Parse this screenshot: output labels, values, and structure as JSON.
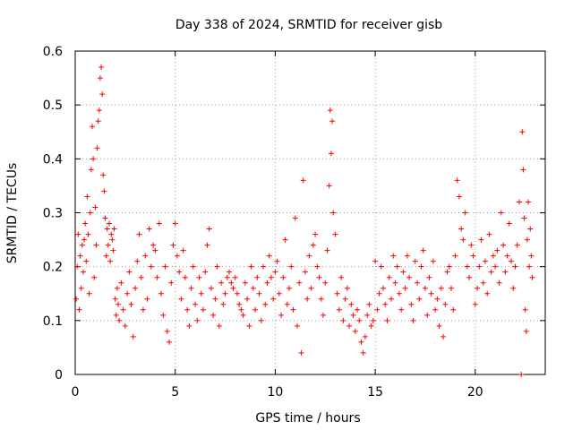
{
  "chart_data": {
    "type": "scatter",
    "title": "Day 338 of 2024, SRMTID for receiver gisb",
    "xlabel": "GPS time / hours",
    "ylabel": "SRMTID / TECUs",
    "xlim": [
      0,
      23.5
    ],
    "ylim": [
      0,
      0.6
    ],
    "x_ticks": [
      0,
      5,
      10,
      15,
      20
    ],
    "y_ticks": [
      0,
      0.1,
      0.2,
      0.3,
      0.4,
      0.5,
      0.6
    ],
    "x_tick_labels": [
      "0",
      "5",
      "10",
      "15",
      "20"
    ],
    "y_tick_labels": [
      "0",
      "0.1",
      "0.2",
      "0.3",
      "0.4",
      "0.5",
      "0.6"
    ],
    "grid": true,
    "marker": "plus",
    "color": "#ff0000",
    "series": [
      {
        "name": "SRMTID",
        "points": [
          [
            0.05,
            0.14
          ],
          [
            0.1,
            0.2
          ],
          [
            0.15,
            0.26
          ],
          [
            0.2,
            0.12
          ],
          [
            0.25,
            0.22
          ],
          [
            0.3,
            0.16
          ],
          [
            0.35,
            0.24
          ],
          [
            0.4,
            0.19
          ],
          [
            0.45,
            0.25
          ],
          [
            0.5,
            0.28
          ],
          [
            0.55,
            0.21
          ],
          [
            0.6,
            0.33
          ],
          [
            0.65,
            0.26
          ],
          [
            0.7,
            0.15
          ],
          [
            0.75,
            0.3
          ],
          [
            0.8,
            0.38
          ],
          [
            0.85,
            0.46
          ],
          [
            0.9,
            0.4
          ],
          [
            0.95,
            0.18
          ],
          [
            1.0,
            0.31
          ],
          [
            1.05,
            0.24
          ],
          [
            1.1,
            0.42
          ],
          [
            1.15,
            0.47
          ],
          [
            1.2,
            0.49
          ],
          [
            1.25,
            0.55
          ],
          [
            1.3,
            0.57
          ],
          [
            1.35,
            0.52
          ],
          [
            1.4,
            0.37
          ],
          [
            1.45,
            0.34
          ],
          [
            1.5,
            0.29
          ],
          [
            1.55,
            0.22
          ],
          [
            1.6,
            0.27
          ],
          [
            1.65,
            0.24
          ],
          [
            1.7,
            0.28
          ],
          [
            1.75,
            0.21
          ],
          [
            1.8,
            0.26
          ],
          [
            1.85,
            0.25
          ],
          [
            1.9,
            0.23
          ],
          [
            1.95,
            0.27
          ],
          [
            2.0,
            0.14
          ],
          [
            2.05,
            0.11
          ],
          [
            2.1,
            0.16
          ],
          [
            2.15,
            0.13
          ],
          [
            2.2,
            0.1
          ],
          [
            2.3,
            0.17
          ],
          [
            2.4,
            0.12
          ],
          [
            2.5,
            0.09
          ],
          [
            2.6,
            0.15
          ],
          [
            2.7,
            0.19
          ],
          [
            2.8,
            0.13
          ],
          [
            2.9,
            0.07
          ],
          [
            3.0,
            0.16
          ],
          [
            3.1,
            0.21
          ],
          [
            3.2,
            0.26
          ],
          [
            3.3,
            0.18
          ],
          [
            3.4,
            0.12
          ],
          [
            3.5,
            0.22
          ],
          [
            3.6,
            0.14
          ],
          [
            3.7,
            0.27
          ],
          [
            3.8,
            0.2
          ],
          [
            3.9,
            0.24
          ],
          [
            4.0,
            0.23
          ],
          [
            4.1,
            0.18
          ],
          [
            4.2,
            0.28
          ],
          [
            4.3,
            0.15
          ],
          [
            4.4,
            0.11
          ],
          [
            4.5,
            0.2
          ],
          [
            4.6,
            0.08
          ],
          [
            4.7,
            0.06
          ],
          [
            4.8,
            0.17
          ],
          [
            4.9,
            0.24
          ],
          [
            5.0,
            0.28
          ],
          [
            5.1,
            0.22
          ],
          [
            5.2,
            0.19
          ],
          [
            5.3,
            0.14
          ],
          [
            5.4,
            0.23
          ],
          [
            5.5,
            0.18
          ],
          [
            5.6,
            0.12
          ],
          [
            5.7,
            0.09
          ],
          [
            5.8,
            0.16
          ],
          [
            5.9,
            0.2
          ],
          [
            6.0,
            0.13
          ],
          [
            6.1,
            0.1
          ],
          [
            6.2,
            0.18
          ],
          [
            6.3,
            0.15
          ],
          [
            6.4,
            0.12
          ],
          [
            6.5,
            0.19
          ],
          [
            6.6,
            0.24
          ],
          [
            6.7,
            0.27
          ],
          [
            6.8,
            0.16
          ],
          [
            6.9,
            0.11
          ],
          [
            7.0,
            0.14
          ],
          [
            7.1,
            0.2
          ],
          [
            7.2,
            0.09
          ],
          [
            7.3,
            0.17
          ],
          [
            7.4,
            0.13
          ],
          [
            7.5,
            0.15
          ],
          [
            7.6,
            0.18
          ],
          [
            7.7,
            0.19
          ],
          [
            7.8,
            0.17
          ],
          [
            7.9,
            0.16
          ],
          [
            8.0,
            0.18
          ],
          [
            8.1,
            0.15
          ],
          [
            8.2,
            0.13
          ],
          [
            8.3,
            0.12
          ],
          [
            8.4,
            0.11
          ],
          [
            8.5,
            0.17
          ],
          [
            8.6,
            0.14
          ],
          [
            8.7,
            0.09
          ],
          [
            8.8,
            0.2
          ],
          [
            8.9,
            0.16
          ],
          [
            9.0,
            0.12
          ],
          [
            9.1,
            0.18
          ],
          [
            9.2,
            0.15
          ],
          [
            9.3,
            0.1
          ],
          [
            9.4,
            0.2
          ],
          [
            9.5,
            0.13
          ],
          [
            9.6,
            0.17
          ],
          [
            9.7,
            0.22
          ],
          [
            9.8,
            0.18
          ],
          [
            9.9,
            0.14
          ],
          [
            10.0,
            0.19
          ],
          [
            10.1,
            0.21
          ],
          [
            10.2,
            0.15
          ],
          [
            10.3,
            0.11
          ],
          [
            10.4,
            0.18
          ],
          [
            10.5,
            0.25
          ],
          [
            10.6,
            0.13
          ],
          [
            10.7,
            0.16
          ],
          [
            10.8,
            0.2
          ],
          [
            10.9,
            0.12
          ],
          [
            11.0,
            0.29
          ],
          [
            11.1,
            0.09
          ],
          [
            11.2,
            0.17
          ],
          [
            11.3,
            0.04
          ],
          [
            11.4,
            0.36
          ],
          [
            11.5,
            0.19
          ],
          [
            11.6,
            0.14
          ],
          [
            11.7,
            0.22
          ],
          [
            11.8,
            0.16
          ],
          [
            11.9,
            0.24
          ],
          [
            12.0,
            0.26
          ],
          [
            12.1,
            0.2
          ],
          [
            12.2,
            0.18
          ],
          [
            12.3,
            0.14
          ],
          [
            12.4,
            0.11
          ],
          [
            12.5,
            0.17
          ],
          [
            12.6,
            0.23
          ],
          [
            12.7,
            0.35
          ],
          [
            12.75,
            0.49
          ],
          [
            12.8,
            0.41
          ],
          [
            12.85,
            0.47
          ],
          [
            12.9,
            0.3
          ],
          [
            13.0,
            0.26
          ],
          [
            13.1,
            0.15
          ],
          [
            13.2,
            0.12
          ],
          [
            13.3,
            0.18
          ],
          [
            13.4,
            0.1
          ],
          [
            13.5,
            0.14
          ],
          [
            13.6,
            0.16
          ],
          [
            13.7,
            0.09
          ],
          [
            13.8,
            0.13
          ],
          [
            13.9,
            0.11
          ],
          [
            14.0,
            0.08
          ],
          [
            14.1,
            0.12
          ],
          [
            14.2,
            0.1
          ],
          [
            14.3,
            0.06
          ],
          [
            14.4,
            0.04
          ],
          [
            14.5,
            0.07
          ],
          [
            14.6,
            0.11
          ],
          [
            14.7,
            0.13
          ],
          [
            14.8,
            0.09
          ],
          [
            14.9,
            0.1
          ],
          [
            15.0,
            0.21
          ],
          [
            15.1,
            0.12
          ],
          [
            15.2,
            0.15
          ],
          [
            15.3,
            0.2
          ],
          [
            15.4,
            0.16
          ],
          [
            15.5,
            0.13
          ],
          [
            15.6,
            0.1
          ],
          [
            15.7,
            0.18
          ],
          [
            15.8,
            0.14
          ],
          [
            15.9,
            0.22
          ],
          [
            16.0,
            0.17
          ],
          [
            16.1,
            0.2
          ],
          [
            16.2,
            0.15
          ],
          [
            16.3,
            0.12
          ],
          [
            16.4,
            0.19
          ],
          [
            16.5,
            0.16
          ],
          [
            16.6,
            0.22
          ],
          [
            16.7,
            0.18
          ],
          [
            16.8,
            0.13
          ],
          [
            16.9,
            0.1
          ],
          [
            17.0,
            0.21
          ],
          [
            17.1,
            0.17
          ],
          [
            17.2,
            0.14
          ],
          [
            17.3,
            0.2
          ],
          [
            17.4,
            0.23
          ],
          [
            17.5,
            0.16
          ],
          [
            17.6,
            0.11
          ],
          [
            17.7,
            0.18
          ],
          [
            17.8,
            0.15
          ],
          [
            17.9,
            0.21
          ],
          [
            18.0,
            0.12
          ],
          [
            18.1,
            0.14
          ],
          [
            18.2,
            0.09
          ],
          [
            18.3,
            0.16
          ],
          [
            18.4,
            0.07
          ],
          [
            18.5,
            0.13
          ],
          [
            18.6,
            0.19
          ],
          [
            18.7,
            0.2
          ],
          [
            18.8,
            0.16
          ],
          [
            18.9,
            0.12
          ],
          [
            19.0,
            0.22
          ],
          [
            19.1,
            0.36
          ],
          [
            19.2,
            0.33
          ],
          [
            19.3,
            0.27
          ],
          [
            19.4,
            0.25
          ],
          [
            19.5,
            0.3
          ],
          [
            19.6,
            0.2
          ],
          [
            19.7,
            0.18
          ],
          [
            19.8,
            0.24
          ],
          [
            19.9,
            0.22
          ],
          [
            20.0,
            0.13
          ],
          [
            20.1,
            0.16
          ],
          [
            20.2,
            0.2
          ],
          [
            20.3,
            0.25
          ],
          [
            20.4,
            0.17
          ],
          [
            20.5,
            0.21
          ],
          [
            20.6,
            0.15
          ],
          [
            20.7,
            0.26
          ],
          [
            20.8,
            0.19
          ],
          [
            20.9,
            0.22
          ],
          [
            21.0,
            0.2
          ],
          [
            21.1,
            0.23
          ],
          [
            21.2,
            0.17
          ],
          [
            21.3,
            0.3
          ],
          [
            21.4,
            0.24
          ],
          [
            21.5,
            0.19
          ],
          [
            21.6,
            0.22
          ],
          [
            21.7,
            0.28
          ],
          [
            21.8,
            0.21
          ],
          [
            21.9,
            0.16
          ],
          [
            22.0,
            0.2
          ],
          [
            22.1,
            0.24
          ],
          [
            22.2,
            0.32
          ],
          [
            22.3,
            0.0
          ],
          [
            22.35,
            0.45
          ],
          [
            22.4,
            0.38
          ],
          [
            22.45,
            0.29
          ],
          [
            22.5,
            0.12
          ],
          [
            22.55,
            0.08
          ],
          [
            22.6,
            0.25
          ],
          [
            22.65,
            0.32
          ],
          [
            22.7,
            0.2
          ],
          [
            22.75,
            0.27
          ],
          [
            22.8,
            0.22
          ],
          [
            22.85,
            0.18
          ]
        ]
      }
    ]
  }
}
